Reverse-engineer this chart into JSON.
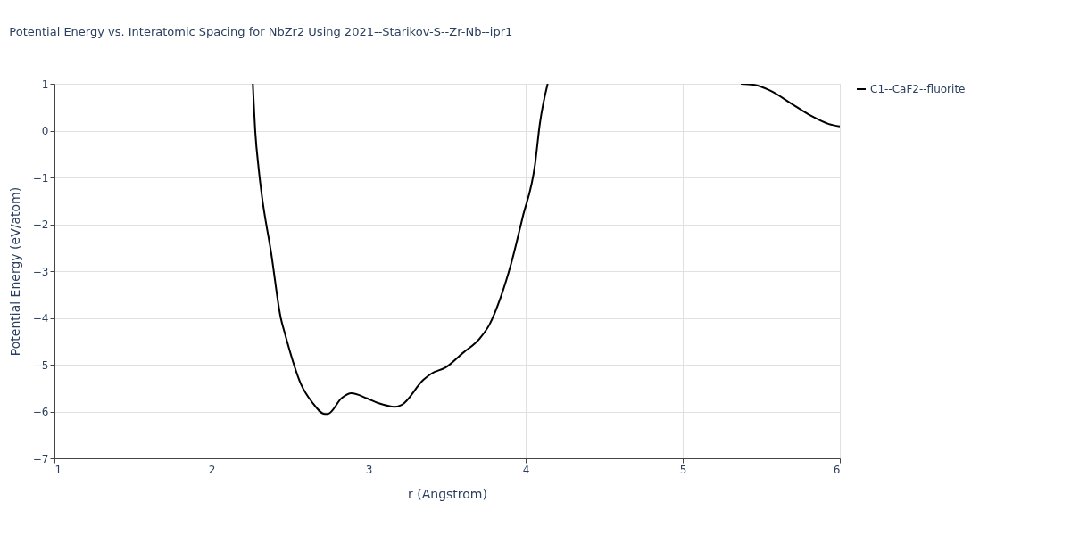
{
  "chart_data": {
    "type": "line",
    "title": "Potential Energy vs. Interatomic Spacing for NbZr2 Using 2021--Starikov-S--Zr-Nb--ipr1",
    "xlabel": "r (Angstrom)",
    "ylabel": "Potential Energy (eV/atom)",
    "x": [
      2.263,
      2.279,
      2.3,
      2.32,
      2.38,
      2.44,
      2.47,
      2.57,
      2.64,
      2.72,
      2.74,
      2.83,
      2.89,
      2.99,
      3.06,
      3.17,
      3.21,
      3.35,
      3.4,
      3.49,
      3.6,
      3.71,
      3.77,
      3.84,
      3.91,
      3.98,
      4.06,
      4.09,
      4.14,
      4.8,
      5.37,
      5.45,
      5.56,
      5.69,
      5.82,
      5.93,
      6.0
    ],
    "series": [
      {
        "name": "C1--CaF2--fluorite",
        "color": "#000000",
        "values": [
          1.0,
          -0.05,
          -0.81,
          -1.38,
          -2.62,
          -3.99,
          -4.37,
          -5.42,
          -5.8,
          -6.05,
          -6.05,
          -5.71,
          -5.61,
          -5.72,
          -5.82,
          -5.9,
          -5.86,
          -5.32,
          -5.19,
          -5.06,
          -4.75,
          -4.43,
          -4.14,
          -3.57,
          -2.81,
          -1.86,
          -0.71,
          0.14,
          1.0,
          null,
          1.0,
          0.98,
          0.85,
          0.58,
          0.31,
          0.14,
          0.09
        ]
      }
    ],
    "xlim": [
      1,
      6
    ],
    "xticks": [
      1,
      2,
      3,
      4,
      5,
      6
    ],
    "ylim": [
      -7,
      1
    ],
    "yticks": [
      {
        "value": -7,
        "label": "−7"
      },
      {
        "value": -6,
        "label": "−6"
      },
      {
        "value": -5,
        "label": "−5"
      },
      {
        "value": -4,
        "label": "−4"
      },
      {
        "value": -3,
        "label": "−3"
      },
      {
        "value": -2,
        "label": "−2"
      },
      {
        "value": -1,
        "label": "−1"
      },
      0,
      1
    ],
    "grid": true,
    "legend": "top right",
    "marker": "none",
    "line_style": "solid"
  }
}
